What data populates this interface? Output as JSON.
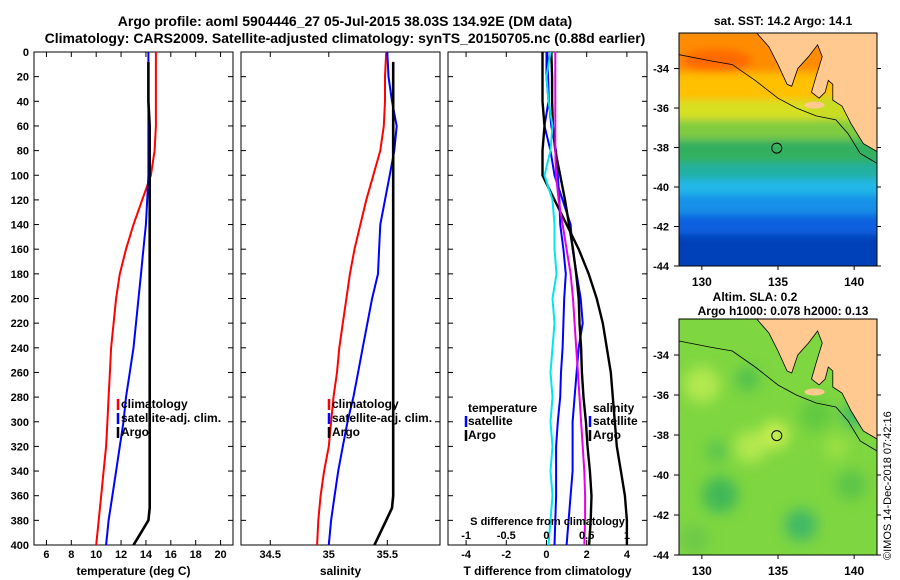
{
  "header": {
    "title_line1": "Argo profile: aoml 5904446_27 05-Jul-2015 38.03S 134.92E (DM data)",
    "title_line2": "Climatology: CARS2009. Satellite-adjusted climatology: synTS_20150705.nc (0.88d earlier)"
  },
  "colors": {
    "climatology": "#ff0000",
    "satellite": "#0000ff",
    "argo": "#000000",
    "temp_diff": "#00e5ee",
    "sal_diff": "#e600e6",
    "map_land": "#ffc990",
    "coast": "#000000"
  },
  "chart_data": [
    {
      "type": "line",
      "id": "temperature",
      "xlabel": "temperature (deg C)",
      "ylabel": "",
      "xlim": [
        5,
        21
      ],
      "ylim": [
        400,
        0
      ],
      "x_ticks": [
        6,
        8,
        10,
        12,
        14,
        16,
        18,
        20
      ],
      "y_ticks": [
        0,
        20,
        40,
        60,
        80,
        100,
        120,
        140,
        160,
        180,
        200,
        220,
        240,
        260,
        280,
        300,
        320,
        340,
        360,
        380,
        400
      ],
      "legend": [
        "climatology",
        "satellite-adj. clim.",
        "Argo"
      ],
      "series": [
        {
          "name": "climatology",
          "depth": [
            0,
            10,
            20,
            40,
            60,
            80,
            100,
            120,
            140,
            160,
            180,
            200,
            220,
            240,
            260,
            280,
            300,
            320,
            340,
            360,
            380,
            400
          ],
          "values": [
            14.8,
            14.8,
            14.8,
            14.8,
            14.8,
            14.7,
            14.4,
            13.7,
            13.0,
            12.4,
            11.9,
            11.6,
            11.4,
            11.2,
            11.1,
            11.0,
            10.9,
            10.8,
            10.6,
            10.4,
            10.2,
            10.0
          ]
        },
        {
          "name": "satellite-adj. clim.",
          "depth": [
            0,
            10,
            20,
            40,
            60,
            80,
            100,
            120,
            140,
            160,
            180,
            200,
            220,
            240,
            260,
            280,
            300,
            320,
            340,
            360,
            380,
            400
          ],
          "values": [
            14.2,
            14.2,
            14.2,
            14.2,
            14.2,
            14.2,
            14.2,
            14.1,
            14.0,
            13.8,
            13.6,
            13.4,
            13.2,
            13.0,
            12.7,
            12.4,
            12.2,
            11.9,
            11.6,
            11.3,
            11.0,
            10.8
          ]
        },
        {
          "name": "Argo",
          "depth": [
            8,
            20,
            40,
            60,
            80,
            100,
            120,
            140,
            160,
            180,
            200,
            220,
            240,
            260,
            280,
            300,
            320,
            340,
            360,
            370,
            380,
            390,
            400
          ],
          "values": [
            14.2,
            14.2,
            14.2,
            14.3,
            14.3,
            14.3,
            14.3,
            14.3,
            14.3,
            14.3,
            14.3,
            14.3,
            14.3,
            14.3,
            14.3,
            14.3,
            14.3,
            14.3,
            14.3,
            14.3,
            14.2,
            13.6,
            13.0
          ]
        }
      ]
    },
    {
      "type": "line",
      "id": "salinity",
      "xlabel": "salinity",
      "ylabel": "",
      "xlim": [
        34.25,
        35.95
      ],
      "ylim": [
        400,
        0
      ],
      "x_ticks": [
        34.5,
        35,
        35.5
      ],
      "x_tick_labels": [
        "34.5",
        "35",
        "35.5"
      ],
      "legend": [
        "climatology",
        "satellite-adj. clim.",
        "Argo"
      ],
      "series": [
        {
          "name": "climatology",
          "depth": [
            0,
            20,
            40,
            60,
            80,
            100,
            120,
            140,
            160,
            180,
            200,
            220,
            240,
            260,
            280,
            300,
            320,
            340,
            360,
            380,
            400
          ],
          "values": [
            35.49,
            35.48,
            35.48,
            35.47,
            35.44,
            35.38,
            35.32,
            35.27,
            35.22,
            35.18,
            35.15,
            35.12,
            35.09,
            35.07,
            35.04,
            35.02,
            35.0,
            34.96,
            34.93,
            34.91,
            34.9
          ]
        },
        {
          "name": "satellite-adj. clim.",
          "depth": [
            0,
            20,
            40,
            60,
            80,
            100,
            120,
            140,
            160,
            180,
            200,
            220,
            240,
            260,
            280,
            300,
            320,
            340,
            360,
            380,
            400
          ],
          "values": [
            35.5,
            35.51,
            35.54,
            35.58,
            35.56,
            35.52,
            35.48,
            35.44,
            35.43,
            35.42,
            35.37,
            35.33,
            35.29,
            35.25,
            35.21,
            35.16,
            35.12,
            35.08,
            35.05,
            35.02,
            35.0
          ]
        },
        {
          "name": "Argo",
          "depth": [
            8,
            100,
            200,
            300,
            350,
            360,
            370,
            380,
            390,
            400
          ],
          "values": [
            35.55,
            35.55,
            35.55,
            35.55,
            35.55,
            35.55,
            35.54,
            35.49,
            35.44,
            35.39
          ]
        }
      ]
    },
    {
      "type": "line",
      "id": "difference",
      "xlabel": "T difference from climatology",
      "top_xlabel": "S difference from climatology",
      "xlim": [
        -4.9,
        5
      ],
      "ylim": [
        400,
        0
      ],
      "x_ticks": [
        -4,
        -2,
        0,
        2,
        4
      ],
      "top_ticks": [
        -1,
        -0.5,
        0,
        0.5,
        1
      ],
      "top_tick_labels": [
        "-1",
        "-0.5",
        "0",
        "0.5",
        "1"
      ],
      "legend_left": [
        "temperature",
        "satellite",
        "Argo"
      ],
      "legend_right": [
        "salinity",
        "satellite",
        "Argo"
      ],
      "series": [
        {
          "name": "temperature satellite",
          "depth": [
            0,
            20,
            40,
            60,
            80,
            100,
            120,
            140,
            160,
            180,
            200,
            220,
            240,
            260,
            280,
            300,
            320,
            340,
            360,
            380,
            400
          ],
          "values": [
            0.0,
            0.0,
            0.1,
            -0.1,
            0.2,
            0.4,
            0.8,
            1.2,
            1.3,
            1.5,
            1.7,
            1.8,
            1.6,
            1.5,
            1.4,
            1.3,
            1.3,
            1.3,
            1.2,
            1.1,
            1.0
          ]
        },
        {
          "name": "temperature Argo",
          "depth": [
            0,
            20,
            40,
            60,
            80,
            100,
            120,
            140,
            160,
            180,
            200,
            220,
            240,
            260,
            280,
            300,
            320,
            340,
            360,
            380,
            400
          ],
          "values": [
            -0.2,
            -0.2,
            -0.2,
            -0.1,
            -0.2,
            -0.2,
            0.4,
            1.0,
            1.6,
            2.1,
            2.5,
            2.8,
            3.0,
            3.2,
            3.3,
            3.4,
            3.5,
            3.7,
            3.9,
            4.0,
            4.0
          ]
        },
        {
          "name": "salinity satellite",
          "depth": [
            0,
            20,
            40,
            60,
            80,
            100,
            120,
            140,
            160,
            180,
            200,
            220,
            240,
            260,
            280,
            300,
            320,
            340,
            360,
            380,
            400
          ],
          "values": [
            0.01,
            0.02,
            0.03,
            0.06,
            0.12,
            0.14,
            0.16,
            0.17,
            0.21,
            0.24,
            0.22,
            0.21,
            0.2,
            0.18,
            0.17,
            0.14,
            0.12,
            0.12,
            0.12,
            0.11,
            0.1
          ]
        },
        {
          "name": "salinity Argo",
          "depth": [
            0,
            20,
            40,
            60,
            80,
            100,
            120,
            140,
            160,
            180,
            200,
            220,
            240,
            260,
            280,
            300,
            320,
            340,
            360,
            380,
            400
          ],
          "values": [
            0.06,
            0.07,
            0.07,
            0.08,
            0.11,
            0.17,
            0.23,
            0.28,
            0.33,
            0.37,
            0.4,
            0.41,
            0.43,
            0.44,
            0.46,
            0.49,
            0.51,
            0.54,
            0.56,
            0.55,
            0.53
          ]
        },
        {
          "name": "temperature diff (cyan)",
          "depth": [
            0,
            20,
            40,
            60,
            80,
            100,
            120,
            140,
            160,
            180,
            200,
            220,
            240,
            260,
            280,
            300,
            320,
            340,
            360,
            380,
            400
          ],
          "values": [
            0.2,
            0.0,
            0.1,
            0.3,
            0.2,
            -0.1,
            0.3,
            0.4,
            0.4,
            0.5,
            0.3,
            0.4,
            0.3,
            0.2,
            0.3,
            0.2,
            0.3,
            0.2,
            0.3,
            0.2,
            0.1
          ]
        },
        {
          "name": "salinity diff (magenta)",
          "depth": [
            0,
            20,
            40,
            60,
            80,
            100,
            120,
            140,
            160,
            180,
            200,
            220,
            240,
            260,
            280,
            300,
            320,
            340,
            360,
            380,
            400
          ],
          "values": [
            0.11,
            0.11,
            0.11,
            0.11,
            0.11,
            0.12,
            0.15,
            0.2,
            0.25,
            0.3,
            0.33,
            0.35,
            0.37,
            0.39,
            0.41,
            0.43,
            0.45,
            0.47,
            0.48,
            0.48,
            0.47
          ]
        }
      ]
    },
    {
      "type": "heatmap",
      "id": "sst_map",
      "title": "sat. SST: 14.2 Argo: 14.1",
      "x_ticks": [
        130,
        135,
        140
      ],
      "y_ticks": [
        -34,
        -36,
        -38,
        -40,
        -42,
        -44
      ],
      "xlim": [
        128.5,
        141.5
      ],
      "ylim": [
        -44,
        -32.2
      ],
      "marker": {
        "lon": 134.92,
        "lat": -38.03
      }
    },
    {
      "type": "heatmap",
      "id": "sla_map",
      "title": "Altim. SLA: 0.2",
      "subtitle": "Argo h1000: 0.078 h2000: 0.13",
      "x_ticks": [
        130,
        135,
        140
      ],
      "y_ticks": [
        -34,
        -36,
        -38,
        -40,
        -42,
        -44
      ],
      "xlim": [
        128.5,
        141.5
      ],
      "ylim": [
        -44,
        -32.2
      ],
      "marker": {
        "lon": 134.92,
        "lat": -38.03
      }
    }
  ],
  "watermark": "©IMOS 14-Dec-2018 07:42:16"
}
